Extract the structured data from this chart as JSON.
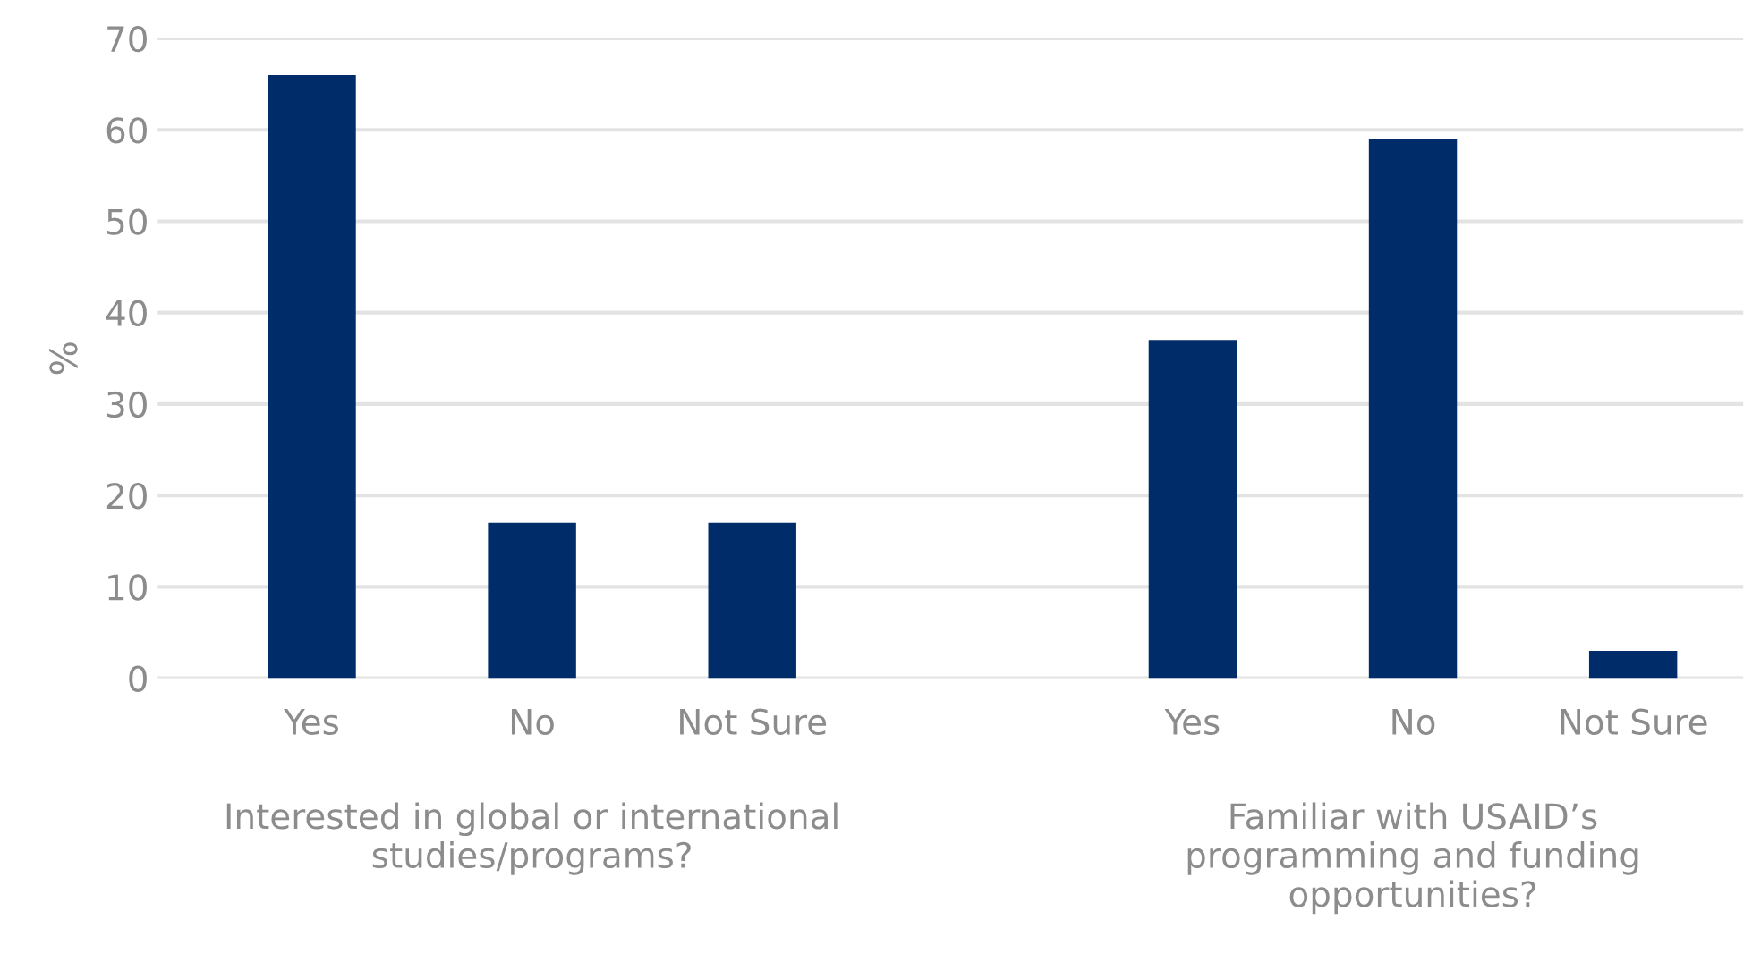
{
  "chart_data": {
    "type": "bar",
    "ylabel": "%",
    "categories": [
      "Yes",
      "No",
      "Not Sure",
      null,
      "Yes",
      "No",
      "Not Sure"
    ],
    "values": [
      66,
      17,
      17,
      null,
      37,
      59,
      3
    ],
    "color": "#002d6a",
    "ylim": [
      0,
      70
    ],
    "yticks": [
      0,
      10,
      20,
      30,
      40,
      50,
      60,
      70
    ],
    "grid": "y",
    "annotations": [
      "Interested in global or international\nstudies/programs?",
      "Familiar with USAID’s\nprogramming and funding\nopportunities?"
    ]
  }
}
